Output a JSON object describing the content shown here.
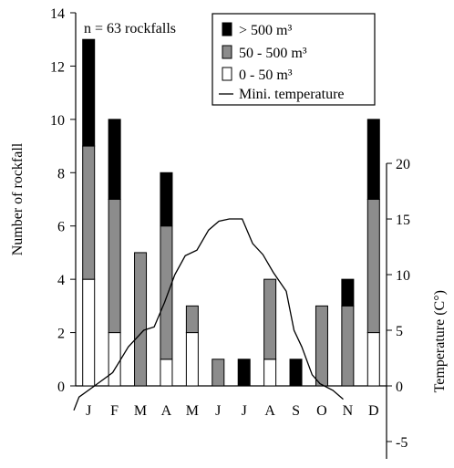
{
  "chart_data": {
    "type": "bar",
    "stacked": true,
    "annotation": "n = 63 rockfalls",
    "categories": [
      "J",
      "F",
      "M",
      "A",
      "M",
      "J",
      "J",
      "A",
      "S",
      "O",
      "N",
      "D"
    ],
    "ylabel": "Number of rockfall",
    "y2label": "Temperature (C°)",
    "ylim": [
      0,
      14
    ],
    "yticks": [
      "0",
      "2",
      "4",
      "6",
      "8",
      "10",
      "12",
      "14"
    ],
    "y2lim": [
      -5,
      20
    ],
    "y2ticks": [
      "-5",
      "0",
      "5",
      "10",
      "15",
      "20"
    ],
    "legend_position": "top-right",
    "series": [
      {
        "name": "0 - 50 m³",
        "color": "#ffffff",
        "values": [
          4,
          2,
          0,
          1,
          2,
          0,
          0,
          1,
          0,
          0,
          0,
          2
        ]
      },
      {
        "name": "50 - 500 m³",
        "color": "#8c8c8c",
        "values": [
          5,
          5,
          5,
          5,
          1,
          1,
          0,
          3,
          0,
          3,
          3,
          5
        ]
      },
      {
        "name": "> 500 m³",
        "color": "#000000",
        "values": [
          4,
          3,
          0,
          2,
          0,
          0,
          1,
          0,
          1,
          0,
          1,
          3
        ]
      }
    ],
    "line_series": {
      "name": "Mini. temperature",
      "color": "#000000",
      "axis": "right",
      "points": [
        [
          0.0,
          -2.2
        ],
        [
          0.2,
          -1.0
        ],
        [
          0.8,
          0.0
        ],
        [
          1.5,
          1.2
        ],
        [
          2.1,
          3.5
        ],
        [
          2.7,
          5.0
        ],
        [
          3.1,
          5.3
        ],
        [
          3.5,
          7.5
        ],
        [
          3.9,
          10.0
        ],
        [
          4.3,
          11.7
        ],
        [
          4.75,
          12.2
        ],
        [
          5.2,
          14.0
        ],
        [
          5.6,
          14.8
        ],
        [
          6.0,
          15.0
        ],
        [
          6.5,
          15.0
        ],
        [
          6.9,
          12.8
        ],
        [
          7.3,
          11.8
        ],
        [
          7.7,
          10.2
        ],
        [
          8.2,
          8.5
        ],
        [
          8.5,
          5.0
        ],
        [
          8.8,
          3.5
        ],
        [
          9.2,
          1.0
        ],
        [
          9.5,
          0.2
        ],
        [
          10.0,
          -0.4
        ],
        [
          10.4,
          -1.2
        ]
      ]
    }
  }
}
